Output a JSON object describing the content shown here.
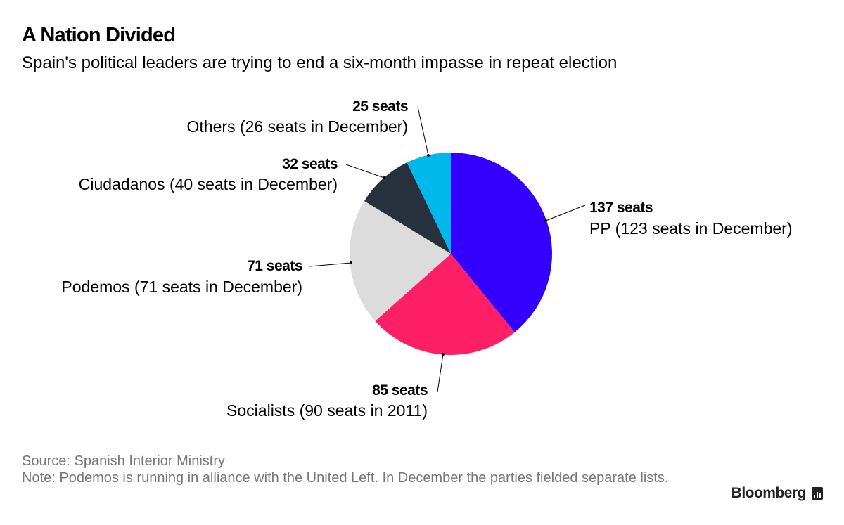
{
  "header": {
    "title": "A Nation Divided",
    "subtitle": "Spain's political leaders are trying to end a six-month impasse in repeat election"
  },
  "chart_data": {
    "type": "pie",
    "title": "A Nation Divided",
    "subtitle": "Spain's political leaders are trying to end a six-month impasse in repeat election",
    "slices": [
      {
        "name": "PP",
        "value": 137,
        "value_label": "137 seats",
        "description": "PP (123 seats in December)",
        "color": "#3300ff"
      },
      {
        "name": "Socialists",
        "value": 85,
        "value_label": "85 seats",
        "description": "Socialists (90 seats in 2011)",
        "color": "#ff1f66"
      },
      {
        "name": "Podemos",
        "value": 71,
        "value_label": "71 seats",
        "description": "Podemos (71 seats in December)",
        "color": "#dcdcdc"
      },
      {
        "name": "Ciudadanos",
        "value": 32,
        "value_label": "32 seats",
        "description": "Ciudadanos (40 seats in December)",
        "color": "#27303d"
      },
      {
        "name": "Others",
        "value": 25,
        "value_label": "25 seats",
        "description": "Others (26 seats in December)",
        "color": "#00b8eb"
      }
    ],
    "start_angle": "12 o'clock",
    "direction": "clockwise"
  },
  "footer": {
    "source": "Source: Spanish Interior Ministry",
    "note": "Note: Podemos is running in alliance with the United Left. In December the parties fielded separate lists."
  },
  "brand": {
    "name": "Bloomberg"
  }
}
